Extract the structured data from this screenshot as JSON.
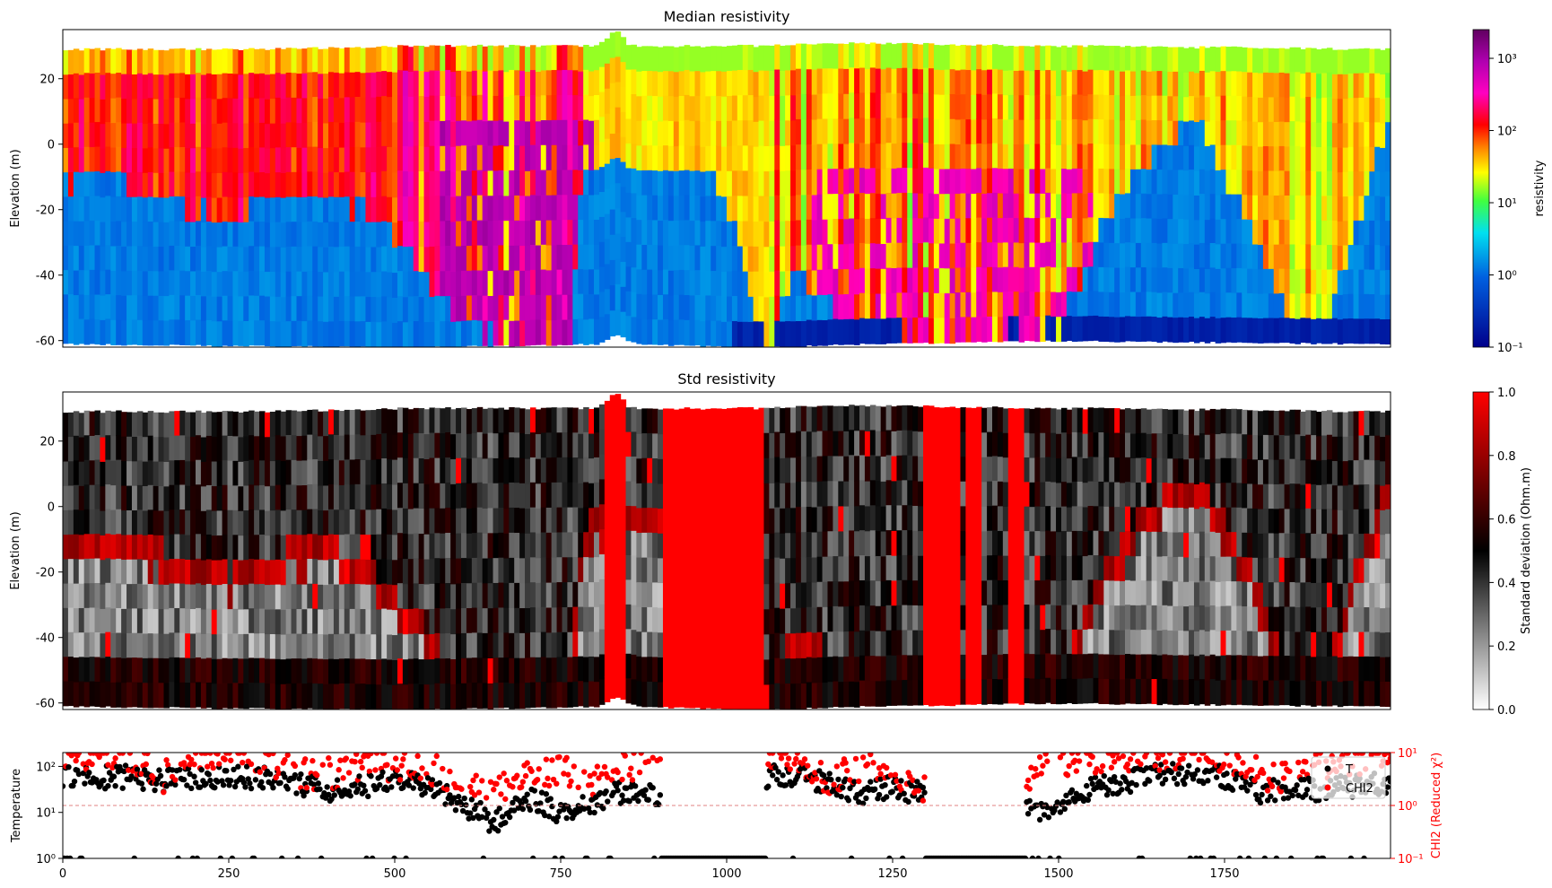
{
  "figure": {
    "panels": [
      {
        "id": "median",
        "title": "Median resistivity",
        "ylabel": "Elevation (m)",
        "ylim": [
          -62,
          35
        ],
        "yticks": [
          20,
          0,
          -20,
          -40,
          -60
        ],
        "colorbar": {
          "label": "resistivity",
          "scale": "log",
          "range": [
            0.1,
            2500
          ],
          "ticks": [
            {
              "value": 0.1,
              "label": "10⁻¹"
            },
            {
              "value": 1,
              "label": "10⁰"
            },
            {
              "value": 10,
              "label": "10¹"
            },
            {
              "value": 100,
              "label": "10²"
            },
            {
              "value": 1000,
              "label": "10³"
            }
          ]
        }
      },
      {
        "id": "std",
        "title": "Std resistivity",
        "ylabel": "Elevation (m)",
        "ylim": [
          -62,
          35
        ],
        "yticks": [
          20,
          0,
          -20,
          -40,
          -60
        ],
        "colorbar": {
          "label": "Standard deviation (Ohm.m)",
          "scale": "linear",
          "range": [
            0,
            1
          ],
          "ticks": [
            {
              "value": 0,
              "label": "0.0"
            },
            {
              "value": 0.2,
              "label": "0.2"
            },
            {
              "value": 0.4,
              "label": "0.4"
            },
            {
              "value": 0.6,
              "label": "0.6"
            },
            {
              "value": 0.8,
              "label": "0.8"
            },
            {
              "value": 1,
              "label": "1.0"
            }
          ]
        }
      }
    ],
    "bottom": {
      "ylabel_left": "Temperature",
      "ylabel_right": "CHI2 (Reduced χ²)",
      "left_ticks": [
        {
          "value": 1,
          "label": "10⁰"
        },
        {
          "value": 10,
          "label": "10¹"
        },
        {
          "value": 100,
          "label": "10²"
        }
      ],
      "right_ticks": [
        {
          "value": 0.1,
          "label": "10⁻¹"
        },
        {
          "value": 1,
          "label": "10⁰"
        },
        {
          "value": 10,
          "label": "10¹"
        }
      ],
      "xticks": [
        {
          "value": 0,
          "label": "0"
        },
        {
          "value": 250,
          "label": "250"
        },
        {
          "value": 500,
          "label": "500"
        },
        {
          "value": 750,
          "label": "750"
        },
        {
          "value": 1000,
          "label": "1000"
        },
        {
          "value": 1250,
          "label": "1250"
        },
        {
          "value": 1500,
          "label": "1500"
        },
        {
          "value": 1750,
          "label": "1750"
        }
      ],
      "legend": [
        "T",
        "CHI2"
      ]
    },
    "colors": {
      "chi2": "#ff0000",
      "temperature": "#000000",
      "reference_line": "#e08080"
    }
  },
  "chart_data": [
    {
      "type": "heatmap",
      "title": "Median resistivity",
      "ylabel": "Elevation (m)",
      "xlim": [
        0,
        2000
      ],
      "ylim": [
        -62,
        35
      ],
      "colormap": "log resistivity, blue (low) to red/magenta (high)",
      "colorbar_label": "resistivity",
      "colorbar_range": [
        0.1,
        2500
      ],
      "top_elevation": [
        [
          0,
          29
        ],
        [
          300,
          29
        ],
        [
          500,
          30
        ],
        [
          800,
          30
        ],
        [
          830,
          35
        ],
        [
          850,
          30
        ],
        [
          1050,
          30
        ],
        [
          1150,
          31
        ],
        [
          1500,
          30
        ],
        [
          2000,
          29
        ]
      ],
      "bottom_elevation": [
        [
          0,
          -61
        ],
        [
          500,
          -62
        ],
        [
          800,
          -61
        ],
        [
          830,
          -58
        ],
        [
          860,
          -61
        ],
        [
          1050,
          -62
        ],
        [
          1200,
          -61
        ],
        [
          1500,
          -60
        ],
        [
          2000,
          -61
        ]
      ],
      "conductive_interface": [
        [
          0,
          -12
        ],
        [
          70,
          -10
        ],
        [
          140,
          -16
        ],
        [
          180,
          -20
        ],
        [
          250,
          -23
        ],
        [
          300,
          -18
        ],
        [
          380,
          -14
        ],
        [
          460,
          -22
        ],
        [
          520,
          -34
        ],
        [
          560,
          -46
        ],
        [
          600,
          -56
        ],
        [
          660,
          -60
        ],
        [
          760,
          -60
        ],
        [
          780,
          -8
        ],
        [
          860,
          -6
        ],
        [
          940,
          -6
        ],
        [
          980,
          -10
        ],
        [
          1060,
          -62
        ],
        [
          1100,
          -38
        ],
        [
          1160,
          -52
        ],
        [
          1250,
          -55
        ],
        [
          1300,
          -60
        ],
        [
          1400,
          -58
        ],
        [
          1500,
          -55
        ],
        [
          1560,
          -25
        ],
        [
          1620,
          -6
        ],
        [
          1700,
          8
        ],
        [
          1800,
          -30
        ],
        [
          1840,
          -52
        ],
        [
          1900,
          -52
        ],
        [
          1960,
          -14
        ],
        [
          2000,
          10
        ]
      ]
    },
    {
      "type": "heatmap",
      "title": "Std resistivity",
      "ylabel": "Elevation (m)",
      "xlim": [
        0,
        2000
      ],
      "ylim": [
        -62,
        35
      ],
      "colormap": "white (0) to black (0.5) to red (1)",
      "colorbar_label": "Standard deviation (Ohm.m)",
      "colorbar_range": [
        0,
        1
      ],
      "saturated_zones": [
        [
          810,
          845
        ],
        [
          900,
          1055
        ],
        [
          1295,
          1345
        ],
        [
          1360,
          1380
        ],
        [
          1420,
          1440
        ]
      ]
    },
    {
      "type": "scatter",
      "xlim": [
        0,
        2000
      ],
      "series": [
        {
          "name": "T",
          "axis": "left",
          "scale": "log",
          "ylim": [
            1,
            200
          ],
          "color": "#000000",
          "profile": [
            [
              0,
              55
            ],
            [
              100,
              60
            ],
            [
              150,
              50
            ],
            [
              200,
              55
            ],
            [
              250,
              60
            ],
            [
              300,
              55
            ],
            [
              350,
              40
            ],
            [
              400,
              30
            ],
            [
              450,
              35
            ],
            [
              500,
              50
            ],
            [
              550,
              35
            ],
            [
              600,
              15
            ],
            [
              650,
              5
            ],
            [
              700,
              20
            ],
            [
              750,
              10
            ],
            [
              800,
              15
            ],
            [
              850,
              30
            ],
            [
              900,
              25
            ],
            [
              1000,
              null
            ],
            [
              1060,
              60
            ],
            [
              1100,
              60
            ],
            [
              1150,
              45
            ],
            [
              1200,
              25
            ],
            [
              1250,
              35
            ],
            [
              1300,
              25
            ],
            [
              1350,
              null
            ],
            [
              1450,
              12
            ],
            [
              1500,
              10
            ],
            [
              1550,
              35
            ],
            [
              1600,
              45
            ],
            [
              1650,
              70
            ],
            [
              1700,
              60
            ],
            [
              1750,
              60
            ],
            [
              1800,
              25
            ],
            [
              1850,
              35
            ],
            [
              1900,
              30
            ],
            [
              1950,
              40
            ],
            [
              2000,
              40
            ]
          ]
        },
        {
          "name": "CHI2",
          "axis": "right",
          "scale": "log",
          "ylim": [
            0.1,
            10
          ],
          "color": "#ff0000",
          "profile": [
            [
              0,
              9
            ],
            [
              100,
              9
            ],
            [
              150,
              3
            ],
            [
              200,
              9
            ],
            [
              250,
              9
            ],
            [
              300,
              8
            ],
            [
              350,
              4
            ],
            [
              400,
              4
            ],
            [
              450,
              5
            ],
            [
              500,
              6
            ],
            [
              550,
              5
            ],
            [
              600,
              3
            ],
            [
              650,
              1.3
            ],
            [
              700,
              4
            ],
            [
              750,
              5
            ],
            [
              800,
              3
            ],
            [
              850,
              6
            ],
            [
              900,
              6
            ],
            [
              1000,
              null
            ],
            [
              1060,
              9
            ],
            [
              1100,
              8
            ],
            [
              1150,
              3
            ],
            [
              1200,
              5
            ],
            [
              1250,
              4
            ],
            [
              1300,
              2
            ],
            [
              1350,
              1.5
            ],
            [
              1450,
              3
            ],
            [
              1500,
              6
            ],
            [
              1550,
              8
            ],
            [
              1600,
              9
            ],
            [
              1650,
              9
            ],
            [
              1700,
              9
            ],
            [
              1750,
              8
            ],
            [
              1800,
              4
            ],
            [
              1850,
              3
            ],
            [
              1900,
              6
            ],
            [
              1950,
              7
            ],
            [
              2000,
              9
            ]
          ]
        }
      ],
      "reference_line": {
        "axis": "right",
        "value": 1
      },
      "legend": [
        "T",
        "CHI2"
      ]
    }
  ]
}
